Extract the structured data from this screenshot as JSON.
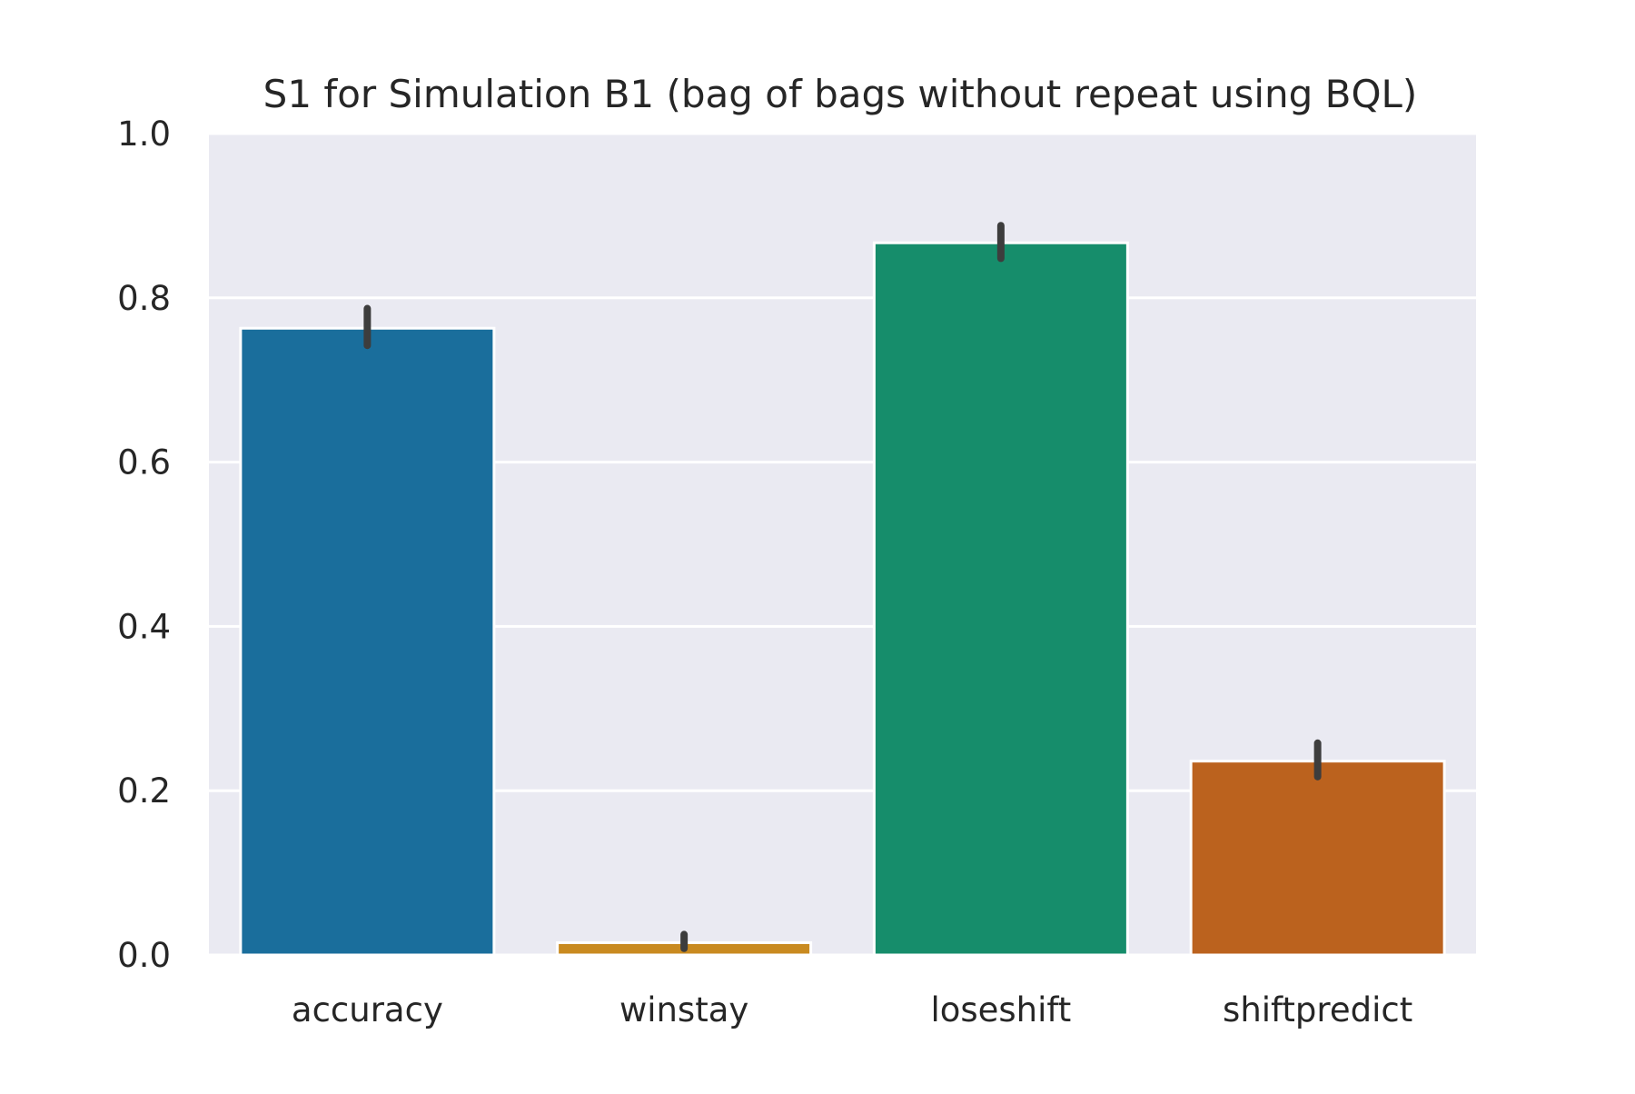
{
  "chart_data": {
    "type": "bar",
    "title": "S1 for Simulation B1 (bag of bags without repeat using BQL)",
    "xlabel": "",
    "ylabel": "",
    "categories": [
      "accuracy",
      "winstay",
      "loseshift",
      "shiftpredict"
    ],
    "values": [
      0.763,
      0.015,
      0.867,
      0.236
    ],
    "error_low": [
      0.742,
      0.008,
      0.848,
      0.217
    ],
    "error_high": [
      0.787,
      0.025,
      0.888,
      0.258
    ],
    "colors": [
      "#1a6e9c",
      "#c98a20",
      "#168d6b",
      "#bb621e"
    ],
    "error_color": "#3d3d3d",
    "ylim": [
      0,
      1.0
    ],
    "yticks": [
      "0.0",
      "0.2",
      "0.4",
      "0.6",
      "0.8",
      "1.0"
    ],
    "grid": true,
    "background": "#eaeaf2",
    "legend": "none"
  }
}
